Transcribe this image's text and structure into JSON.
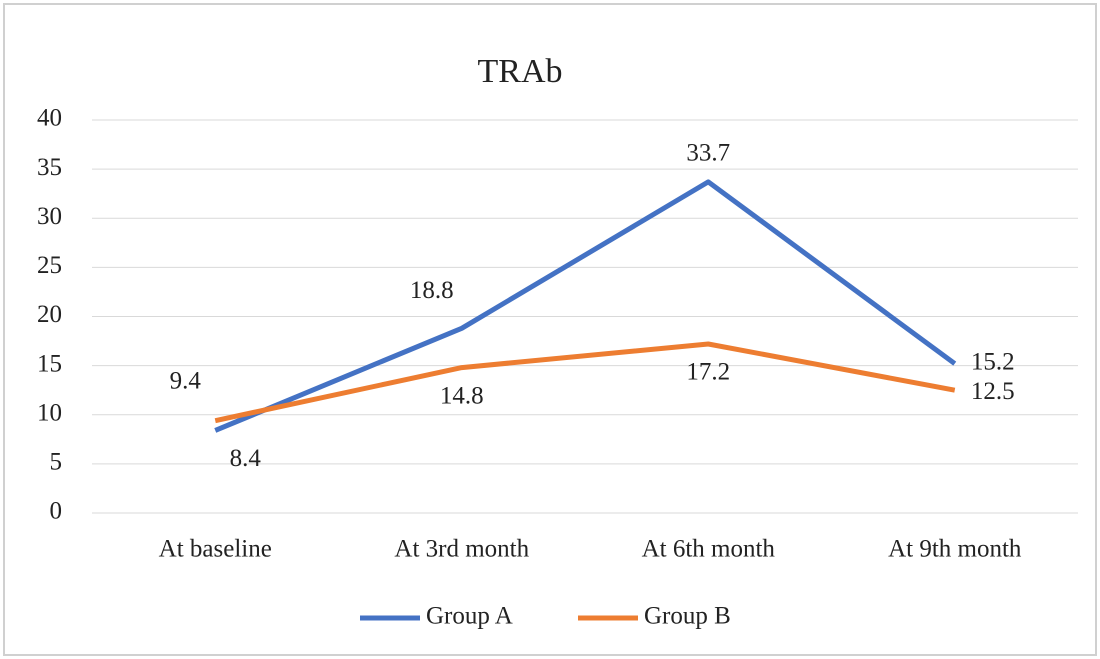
{
  "chart_data": {
    "type": "line",
    "title": "TRAb",
    "categories": [
      "At baseline",
      "At 3rd month",
      "At 6th month",
      "At 9th month"
    ],
    "series": [
      {
        "name": "Group A",
        "color": "#4472c4",
        "values": [
          8.4,
          18.8,
          33.7,
          15.2
        ]
      },
      {
        "name": "Group B",
        "color": "#ed7d31",
        "values": [
          9.4,
          14.8,
          17.2,
          12.5
        ]
      }
    ],
    "ylim": [
      0,
      40
    ],
    "yticks": [
      0,
      5,
      10,
      15,
      20,
      25,
      30,
      35,
      40
    ],
    "grid": true,
    "legend": "bottom"
  }
}
